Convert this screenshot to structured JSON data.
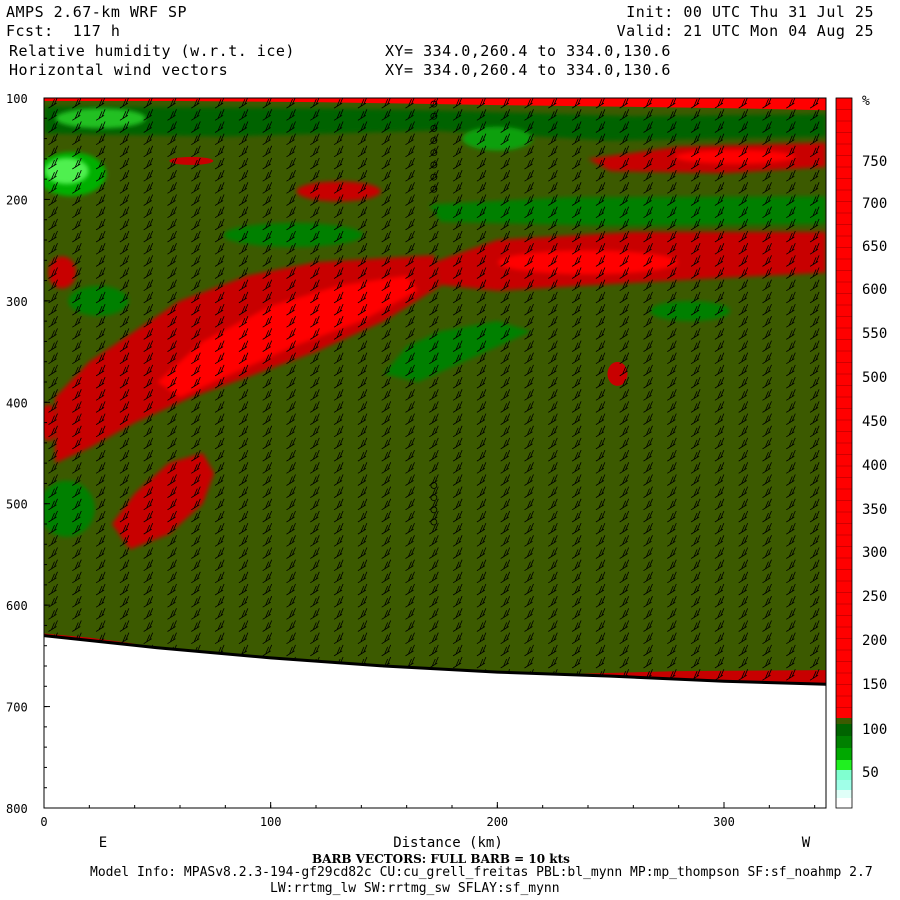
{
  "header": {
    "model_title": "AMPS 2.67-km WRF SP",
    "fcst_line": "Fcst:  117 h",
    "field_name": "Relative humidity (w.r.t. ice)",
    "vector_name": "Horizontal wind vectors",
    "xy_line_1": "XY= 334.0,260.4 to 334.0,130.6",
    "xy_line_2": "XY= 334.0,260.4 to 334.0,130.6",
    "init_line": "Init: 00 UTC Thu 31 Jul 25",
    "valid_line": "Valid: 21 UTC Mon 04 Aug 25"
  },
  "colorbar": {
    "unit": "%",
    "tick_labels": [
      "750",
      "700",
      "650",
      "600",
      "550",
      "500",
      "450",
      "400",
      "350",
      "300",
      "250",
      "200",
      "150",
      "100",
      "50"
    ],
    "colors": [
      "#ff0000",
      "#e50000",
      "#c80000",
      "#b01818",
      "#3c5a00",
      "#006400",
      "#008000",
      "#00a800",
      "#00d200",
      "#20f020",
      "#50ff78",
      "#88ffcc",
      "#c0fff0",
      "#ffffff"
    ]
  },
  "chart_data": {
    "type": "heatmap",
    "title": "Relative humidity (w.r.t. ice)",
    "xlabel": "Distance (km)",
    "ylabel": "",
    "x_ticks": [
      0,
      100,
      200,
      300
    ],
    "y_ticks": [
      100,
      200,
      300,
      400,
      500,
      600,
      700,
      800
    ],
    "xlim": [
      0,
      345
    ],
    "ylim": [
      800,
      100
    ],
    "y_inverted": true,
    "left_end_label": "E",
    "right_end_label": "W",
    "background_value_class": "100-150 %",
    "terrain_surface_pressure": [
      [
        0,
        630
      ],
      [
        50,
        642
      ],
      [
        100,
        652
      ],
      [
        150,
        660
      ],
      [
        200,
        666
      ],
      [
        250,
        670
      ],
      [
        300,
        675
      ],
      [
        345,
        678
      ]
    ],
    "regions": [
      {
        "label": "RH > 150 % (red) band near top",
        "p_range": [
          100,
          112
        ],
        "x_range": [
          0,
          345
        ]
      },
      {
        "label": "RH > 150 % (red) band",
        "p_range": [
          140,
          175
        ],
        "x_range": [
          240,
          345
        ]
      },
      {
        "label": "RH > 150 % (red) band",
        "p_range": [
          230,
          285
        ],
        "x_range": [
          172,
          345
        ]
      },
      {
        "label": "RH > 150 % (red) diagonal plume",
        "p_range": [
          250,
          470
        ],
        "x_range": [
          5,
          175
        ]
      },
      {
        "label": "RH > 150 % (red) lower lobe",
        "p_range": [
          445,
          550
        ],
        "x_range": [
          30,
          75
        ]
      },
      {
        "label": "RH 50-100 % (green) band",
        "p_range": [
          195,
          225
        ],
        "x_range": [
          170,
          345
        ]
      },
      {
        "label": "RH 50-100 % (green) lobe",
        "p_range": [
          315,
          380
        ],
        "x_range": [
          150,
          210
        ]
      },
      {
        "label": "RH < 50 % (light green) patch",
        "p_range": [
          150,
          195
        ],
        "x_range": [
          0,
          30
        ]
      }
    ]
  },
  "axes": {
    "x_axis_title": "Distance (km)",
    "x_ticks": [
      "0",
      "100",
      "200",
      "300"
    ],
    "y_ticks": [
      "100",
      "200",
      "300",
      "400",
      "500",
      "600",
      "700",
      "800"
    ],
    "left_end": "E",
    "right_end": "W"
  },
  "footer": {
    "barb_text": "BARB VECTORS:  FULL BARB = 10 kts",
    "model_info_1": "Model Info: MPASv8.2.3-194-gf29cd82c CU:cu_grell_freitas PBL:bl_mynn MP:mp_thompson SF:sf_noahmp 2.7",
    "model_info_2": "LW:rrtmg_lw SW:rrtmg_sw SFLAY:sf_mynn"
  }
}
